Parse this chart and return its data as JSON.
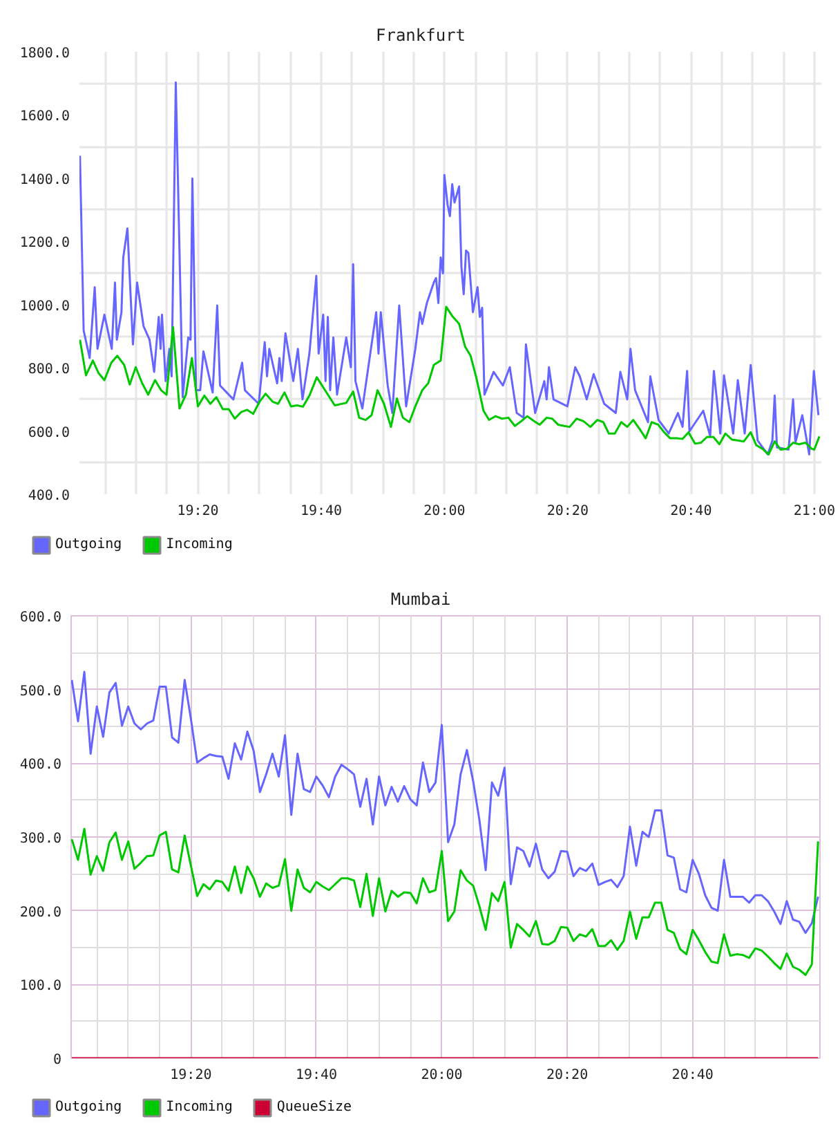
{
  "chart_data": [
    {
      "type": "line",
      "title": "Frankfurt",
      "xlim": [
        19.013,
        21.019
      ],
      "ylim": [
        400,
        1800
      ],
      "xticks": [
        {
          "value": 19.0833,
          "label": null
        },
        {
          "value": 19.1667,
          "label": null
        },
        {
          "value": 19.25,
          "label": null
        },
        {
          "value": 19.3333,
          "label": "19:20"
        },
        {
          "value": 19.4167,
          "label": null
        },
        {
          "value": 19.5,
          "label": null
        },
        {
          "value": 19.5833,
          "label": null
        },
        {
          "value": 19.6667,
          "label": "19:40"
        },
        {
          "value": 19.75,
          "label": null
        },
        {
          "value": 19.8333,
          "label": null
        },
        {
          "value": 19.9167,
          "label": null
        },
        {
          "value": 20,
          "label": "20:00"
        },
        {
          "value": 20.0833,
          "label": null
        },
        {
          "value": 20.1667,
          "label": null
        },
        {
          "value": 20.25,
          "label": null
        },
        {
          "value": 20.3333,
          "label": "20:20"
        },
        {
          "value": 20.4167,
          "label": null
        },
        {
          "value": 20.5,
          "label": null
        },
        {
          "value": 20.5833,
          "label": null
        },
        {
          "value": 20.6667,
          "label": "20:40"
        },
        {
          "value": 20.75,
          "label": null
        },
        {
          "value": 20.8333,
          "label": null
        },
        {
          "value": 20.9167,
          "label": null
        },
        {
          "value": 21,
          "label": "21:00"
        }
      ],
      "yticks": [
        {
          "value": 400,
          "label": "400.0"
        },
        {
          "value": 500,
          "label": null
        },
        {
          "value": 600,
          "label": "600.0"
        },
        {
          "value": 700,
          "label": null
        },
        {
          "value": 800,
          "label": "800.0"
        },
        {
          "value": 900,
          "label": null
        },
        {
          "value": 1000,
          "label": "1000.0"
        },
        {
          "value": 1100,
          "label": null
        },
        {
          "value": 1200,
          "label": "1200.0"
        },
        {
          "value": 1300,
          "label": null
        },
        {
          "value": 1400,
          "label": "1400.0"
        },
        {
          "value": 1500,
          "label": null
        },
        {
          "value": 1600,
          "label": "1600.0"
        },
        {
          "value": 1700,
          "label": null
        },
        {
          "value": 1800,
          "label": "1800.0"
        }
      ],
      "grid": true,
      "legend": "bottom left",
      "series": [
        {
          "name": "Outgoing",
          "color": "#6666ff",
          "x": [
            19.0144,
            19.0244,
            19.0406,
            19.0543,
            19.0618,
            19.0805,
            19.1004,
            19.1091,
            19.1141,
            19.1266,
            19.1315,
            19.1427,
            19.1577,
            19.1689,
            19.1863,
            19.2025,
            19.215,
            19.2274,
            19.2324,
            19.2362,
            19.2461,
            19.2561,
            19.2623,
            19.2735,
            19.2922,
            19.3072,
            19.3134,
            19.3184,
            19.3283,
            19.3395,
            19.3483,
            19.3732,
            19.3856,
            19.3931,
            19.4292,
            19.4529,
            19.4604,
            19.4977,
            19.5139,
            19.5202,
            19.5264,
            19.5476,
            19.5538,
            19.56,
            19.57,
            19.5912,
            19.6036,
            19.6161,
            19.6348,
            19.6534,
            19.6597,
            19.6721,
            19.6784,
            19.6846,
            19.6908,
            19.6995,
            19.7095,
            19.7344,
            19.7469,
            19.7531,
            19.7593,
            19.778,
            19.8154,
            19.8216,
            19.8278,
            19.8465,
            19.859,
            19.8776,
            19.8963,
            19.9212,
            19.9337,
            19.9399,
            19.9524,
            19.9711,
            19.9773,
            19.9835,
            19.9898,
            19.996,
            19.9997,
            20.0084,
            20.0147,
            20.0209,
            20.0271,
            20.0396,
            20.0458,
            20.052,
            20.0583,
            20.0645,
            20.0769,
            20.0894,
            20.0956,
            20.1019,
            20.1081,
            20.133,
            20.1579,
            20.1766,
            20.1953,
            20.214,
            20.2202,
            20.2451,
            20.27,
            20.2762,
            20.2825,
            20.2949,
            20.3323,
            20.3535,
            20.3659,
            20.3846,
            20.4033,
            20.4319,
            20.4631,
            20.4755,
            20.4942,
            20.5029,
            20.5154,
            20.5503,
            20.5565,
            20.5789,
            20.6063,
            20.6312,
            20.6437,
            20.6561,
            20.6624,
            20.6997,
            20.7184,
            20.7284,
            20.7458,
            20.7558,
            20.7807,
            20.7932,
            20.8118,
            20.828,
            20.8467,
            20.8741,
            20.8866,
            20.8928,
            20.899,
            20.9302,
            20.9426,
            20.9489,
            20.9675,
            20.9862,
            20.9987,
            21.0111
          ],
          "values": [
            1471,
            918,
            831,
            1055,
            860,
            968,
            860,
            1070,
            889,
            976,
            1149,
            1241,
            874,
            1070,
            932,
            889,
            787,
            961,
            860,
            968,
            758,
            860,
            773,
            1703,
            707,
            896,
            889,
            1399,
            729,
            729,
            852,
            722,
            997,
            744,
            700,
            816,
            729,
            686,
            881,
            773,
            860,
            751,
            831,
            758,
            909,
            758,
            860,
            700,
            845,
            1091,
            845,
            968,
            758,
            961,
            729,
            896,
            715,
            896,
            802,
            1128,
            758,
            671,
            976,
            845,
            976,
            744,
            657,
            997,
            678,
            860,
            976,
            939,
            1005,
            1070,
            1084,
            1005,
            1149,
            1099,
            1410,
            1316,
            1280,
            1381,
            1323,
            1374,
            1120,
            1033,
            1171,
            1164,
            976,
            1055,
            961,
            990,
            715,
            787,
            744,
            802,
            657,
            642,
            874,
            657,
            758,
            700,
            802,
            700,
            678,
            802,
            773,
            700,
            780,
            686,
            657,
            787,
            700,
            860,
            729,
            628,
            773,
            635,
            592,
            657,
            613,
            790,
            599,
            664,
            584,
            790,
            592,
            776,
            592,
            761,
            592,
            809,
            570,
            526,
            570,
            712,
            548,
            541,
            700,
            563,
            650,
            526,
            790,
            650
          ]
        },
        {
          "name": "Incoming",
          "color": "#00c800",
          "x": [
            19.0144,
            19.0306,
            19.0493,
            19.0643,
            19.0805,
            19.0991,
            19.1153,
            19.134,
            19.149,
            19.1652,
            19.1826,
            19.1988,
            19.2175,
            19.2337,
            19.2486,
            19.2661,
            19.2835,
            19.3009,
            19.3171,
            19.3333,
            19.3508,
            19.367,
            19.3831,
            19.4006,
            19.4168,
            19.433,
            19.4504,
            19.4666,
            19.4828,
            19.5002,
            19.5164,
            19.5351,
            19.5501,
            19.5675,
            19.5849,
            19.6011,
            19.6173,
            19.6348,
            19.6547,
            19.7033,
            19.7344,
            19.7531,
            19.7693,
            19.7867,
            19.8029,
            19.8191,
            19.8365,
            19.8552,
            19.8714,
            19.8876,
            19.9051,
            19.9212,
            19.9399,
            19.9561,
            19.9711,
            19.9898,
            20.0047,
            20.0209,
            20.0396,
            20.0558,
            20.0707,
            20.0869,
            20.1056,
            20.1205,
            20.138,
            20.1554,
            20.1729,
            20.1903,
            20.2077,
            20.2239,
            20.2414,
            20.2576,
            20.2762,
            20.2912,
            20.3074,
            20.3236,
            20.3385,
            20.3572,
            20.3759,
            20.3946,
            20.4133,
            20.4294,
            20.4444,
            20.4606,
            20.478,
            20.4942,
            20.5104,
            20.5279,
            20.544,
            20.5602,
            20.5777,
            20.5939,
            20.6101,
            20.6275,
            20.6437,
            20.6599,
            20.6773,
            20.6935,
            20.7097,
            20.7271,
            20.7433,
            20.7595,
            20.777,
            20.7932,
            20.8094,
            20.828,
            20.843,
            20.8592,
            20.8766,
            20.8928,
            20.909,
            20.9264,
            20.9426,
            20.9588,
            20.9763,
            20.9925,
            20.9999,
            21.0136
          ],
          "values": [
            889,
            776,
            823,
            784,
            761,
            816,
            838,
            809,
            747,
            802,
            751,
            715,
            761,
            729,
            715,
            929,
            671,
            715,
            831,
            678,
            712,
            686,
            707,
            669,
            669,
            639,
            660,
            667,
            654,
            693,
            718,
            693,
            686,
            722,
            678,
            681,
            677,
            712,
            770,
            681,
            689,
            725,
            642,
            635,
            650,
            729,
            686,
            613,
            703,
            642,
            628,
            678,
            729,
            751,
            809,
            823,
            993,
            964,
            939,
            867,
            838,
            765,
            664,
            635,
            647,
            639,
            642,
            616,
            631,
            647,
            632,
            620,
            642,
            639,
            620,
            616,
            613,
            639,
            631,
            613,
            635,
            628,
            592,
            592,
            628,
            613,
            635,
            606,
            577,
            628,
            620,
            596,
            577,
            577,
            575,
            596,
            560,
            563,
            581,
            581,
            558,
            592,
            573,
            570,
            567,
            596,
            555,
            544,
            526,
            567,
            541,
            544,
            563,
            558,
            563,
            544,
            541,
            583
          ]
        }
      ]
    },
    {
      "type": "line",
      "title": "Mumbai",
      "xlim": [
        19.015,
        21.005
      ],
      "ylim": [
        0,
        600
      ],
      "xticks": [
        {
          "value": 19.0833,
          "label": null
        },
        {
          "value": 19.1667,
          "label": null
        },
        {
          "value": 19.25,
          "label": null
        },
        {
          "value": 19.3333,
          "label": "19:20"
        },
        {
          "value": 19.4167,
          "label": null
        },
        {
          "value": 19.5,
          "label": null
        },
        {
          "value": 19.5833,
          "label": null
        },
        {
          "value": 19.6667,
          "label": "19:40"
        },
        {
          "value": 19.75,
          "label": null
        },
        {
          "value": 19.8333,
          "label": null
        },
        {
          "value": 19.9167,
          "label": null
        },
        {
          "value": 20,
          "label": "20:00"
        },
        {
          "value": 20.0833,
          "label": null
        },
        {
          "value": 20.1667,
          "label": null
        },
        {
          "value": 20.25,
          "label": null
        },
        {
          "value": 20.3333,
          "label": "20:20"
        },
        {
          "value": 20.4167,
          "label": null
        },
        {
          "value": 20.5,
          "label": null
        },
        {
          "value": 20.5833,
          "label": null
        },
        {
          "value": 20.6667,
          "label": "20:40"
        },
        {
          "value": 20.75,
          "label": null
        },
        {
          "value": 20.8333,
          "label": null
        },
        {
          "value": 20.9167,
          "label": null
        }
      ],
      "yticks": [
        0,
        {
          "value": 50,
          "label": null
        },
        {
          "value": 100,
          "label": "100.0"
        },
        {
          "value": 150,
          "label": null
        },
        {
          "value": 200,
          "label": "200.0"
        },
        {
          "value": 250,
          "label": null
        },
        {
          "value": 300,
          "label": "300.0"
        },
        {
          "value": 350,
          "label": null
        },
        {
          "value": 400,
          "label": "400.0"
        },
        {
          "value": 450,
          "label": null
        },
        {
          "value": 500,
          "label": "500.0"
        },
        {
          "value": 550,
          "label": null
        },
        {
          "value": 600,
          "label": "600.0"
        }
      ],
      "grid": true,
      "legend": "bottom left",
      "x": [
        19.0167,
        19.0333,
        19.05,
        19.0667,
        19.0833,
        19.1,
        19.1167,
        19.1333,
        19.15,
        19.1667,
        19.1833,
        19.2,
        19.2167,
        19.2333,
        19.25,
        19.2667,
        19.2833,
        19.3,
        19.3167,
        19.3333,
        19.35,
        19.3667,
        19.3833,
        19.4,
        19.4167,
        19.4333,
        19.45,
        19.4667,
        19.4833,
        19.5,
        19.5167,
        19.5333,
        19.55,
        19.5667,
        19.5833,
        19.6,
        19.6167,
        19.6333,
        19.65,
        19.6667,
        19.6833,
        19.7,
        19.7167,
        19.7333,
        19.75,
        19.7667,
        19.7833,
        19.8,
        19.8167,
        19.8333,
        19.85,
        19.8667,
        19.8833,
        19.9,
        19.9167,
        19.9333,
        19.95,
        19.9667,
        19.9833,
        20,
        20.0167,
        20.0333,
        20.05,
        20.0667,
        20.0833,
        20.1,
        20.1167,
        20.1333,
        20.15,
        20.1667,
        20.1833,
        20.2,
        20.2167,
        20.2333,
        20.25,
        20.2667,
        20.2833,
        20.3,
        20.3167,
        20.3333,
        20.35,
        20.3667,
        20.3833,
        20.4,
        20.4167,
        20.4333,
        20.45,
        20.4667,
        20.4833,
        20.5,
        20.5167,
        20.5333,
        20.55,
        20.5667,
        20.5833,
        20.6,
        20.6167,
        20.6333,
        20.65,
        20.6667,
        20.6833,
        20.7,
        20.7167,
        20.7333,
        20.75,
        20.7667,
        20.7833,
        20.8,
        20.8167,
        20.8333,
        20.85,
        20.8667,
        20.8833,
        20.9,
        20.9167,
        20.9333,
        20.95,
        20.9667,
        20.9833,
        21
      ],
      "series": [
        {
          "name": "Outgoing",
          "color": "#6666ff",
          "values": [
            513,
            457,
            524,
            413,
            477,
            436,
            496,
            509,
            451,
            477,
            454,
            446,
            454,
            458,
            504,
            504,
            435,
            428,
            513,
            460,
            401,
            407,
            412,
            410,
            409,
            379,
            427,
            405,
            443,
            417,
            361,
            385,
            413,
            382,
            438,
            330,
            413,
            365,
            361,
            382,
            370,
            354,
            382,
            398,
            392,
            385,
            341,
            379,
            317,
            382,
            343,
            368,
            348,
            369,
            351,
            343,
            401,
            361,
            374,
            452,
            293,
            317,
            385,
            418,
            376,
            323,
            255,
            374,
            356,
            394,
            236,
            286,
            281,
            260,
            291,
            256,
            244,
            253,
            281,
            280,
            247,
            258,
            254,
            264,
            235,
            239,
            242,
            232,
            247,
            314,
            261,
            307,
            300,
            336,
            336,
            275,
            272,
            229,
            225,
            269,
            250,
            221,
            204,
            200,
            269,
            219,
            219,
            219,
            211,
            221,
            221,
            213,
            199,
            182,
            213,
            188,
            185,
            170,
            183,
            219
          ]
        },
        {
          "name": "Incoming",
          "color": "#00c800",
          "values": [
            297,
            269,
            311,
            249,
            274,
            254,
            293,
            306,
            269,
            294,
            257,
            265,
            274,
            275,
            302,
            307,
            256,
            252,
            302,
            261,
            220,
            236,
            229,
            241,
            239,
            227,
            260,
            224,
            260,
            244,
            219,
            237,
            231,
            234,
            270,
            200,
            256,
            231,
            225,
            239,
            233,
            228,
            236,
            244,
            244,
            241,
            205,
            250,
            193,
            244,
            199,
            227,
            219,
            225,
            224,
            210,
            244,
            225,
            228,
            281,
            186,
            199,
            255,
            241,
            234,
            206,
            174,
            224,
            213,
            239,
            150,
            182,
            174,
            165,
            186,
            155,
            154,
            159,
            178,
            177,
            159,
            168,
            165,
            175,
            152,
            152,
            160,
            147,
            159,
            199,
            162,
            191,
            191,
            211,
            211,
            174,
            170,
            148,
            141,
            174,
            160,
            144,
            131,
            129,
            168,
            139,
            141,
            140,
            136,
            149,
            146,
            138,
            129,
            121,
            142,
            124,
            120,
            113,
            127,
            294
          ]
        },
        {
          "name": "QueueSize",
          "color": "#cc0033",
          "x": [
            19.0167,
            21
          ],
          "values": [
            0,
            0
          ]
        }
      ]
    }
  ]
}
